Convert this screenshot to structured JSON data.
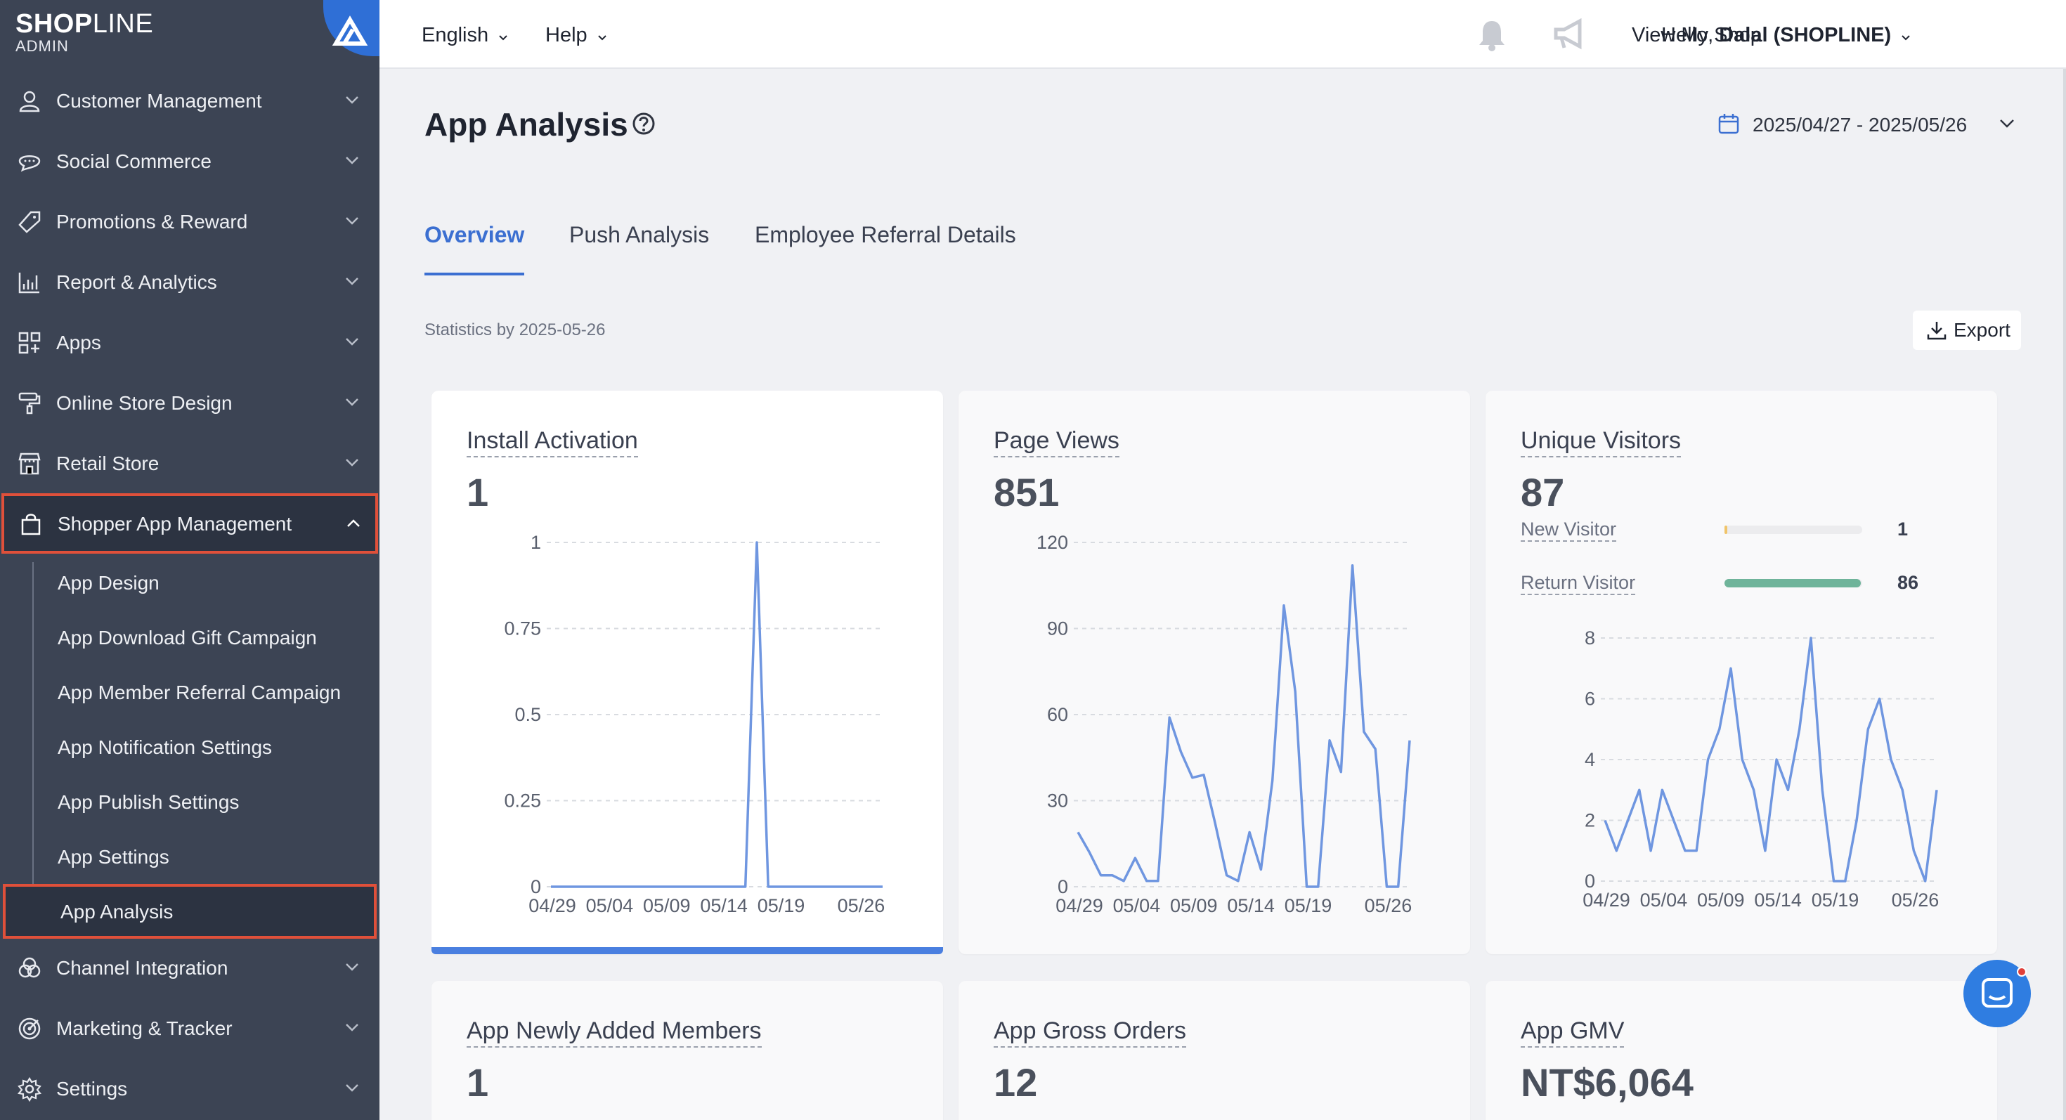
{
  "sidebar": {
    "logo": {
      "brand_bold": "SHOP",
      "brand_light": "LINE",
      "subtitle": "ADMIN"
    },
    "items": [
      {
        "label": "Customer Management",
        "icon": "user-icon"
      },
      {
        "label": "Social Commerce",
        "icon": "chat-bubble-icon"
      },
      {
        "label": "Promotions & Reward",
        "icon": "tag-icon"
      },
      {
        "label": "Report & Analytics",
        "icon": "bar-chart-icon"
      },
      {
        "label": "Apps",
        "icon": "apps-grid-icon"
      },
      {
        "label": "Online Store Design",
        "icon": "paint-roller-icon"
      },
      {
        "label": "Retail Store",
        "icon": "store-icon"
      },
      {
        "label": "Shopper App Management",
        "icon": "shopping-bag-icon",
        "expanded": true
      },
      {
        "label": "Channel Integration",
        "icon": "channels-icon"
      },
      {
        "label": "Marketing & Tracker",
        "icon": "target-icon"
      },
      {
        "label": "Settings",
        "icon": "gear-icon"
      }
    ],
    "sub_items": [
      {
        "label": "App Design"
      },
      {
        "label": "App Download Gift Campaign"
      },
      {
        "label": "App Member Referral Campaign"
      },
      {
        "label": "App Notification Settings"
      },
      {
        "label": "App Publish Settings"
      },
      {
        "label": "App Settings"
      },
      {
        "label": "App Analysis",
        "selected": true
      }
    ]
  },
  "topbar": {
    "language": "English",
    "help": "Help",
    "view_shop": "View My Shop",
    "greeting": "Hello,",
    "user": "Dalal (SHOPLINE)"
  },
  "main": {
    "title": "App Analysis",
    "date_range": "2025/04/27 - 2025/05/26",
    "tabs": [
      {
        "label": "Overview",
        "active": true
      },
      {
        "label": "Push Analysis"
      },
      {
        "label": "Employee Referral Details"
      }
    ],
    "stats_by": "Statistics by 2025-05-26",
    "export_label": "Export",
    "cards": [
      {
        "title": "Install Activation",
        "value": "1"
      },
      {
        "title": "Page Views",
        "value": "851"
      },
      {
        "title": "Unique Visitors",
        "value": "87"
      },
      {
        "title": "App Newly Added Members",
        "value": "1"
      },
      {
        "title": "App Gross Orders",
        "value": "12"
      },
      {
        "title": "App GMV",
        "value": "NT$6,064"
      }
    ],
    "visitors": {
      "new_label": "New Visitor",
      "new_value": "1",
      "return_label": "Return Visitor",
      "return_value": "86"
    }
  },
  "colors": {
    "accent": "#3b6fd1",
    "line": "#6f96e0",
    "return_bar": "#6fb49a",
    "new_bar": "#f0c46a",
    "highlight": "#e0503a"
  },
  "chart_data": [
    {
      "type": "line",
      "name": "Install Activation",
      "x_ticks": [
        "04/29",
        "05/04",
        "05/09",
        "05/14",
        "05/19",
        "05/26"
      ],
      "y_ticks": [
        "0",
        "0.25",
        "0.5",
        "0.75",
        "1"
      ],
      "ylim": [
        0,
        1
      ],
      "values": [
        0,
        0,
        0,
        0,
        0,
        0,
        0,
        0,
        0,
        0,
        0,
        0,
        0,
        0,
        0,
        0,
        0,
        0,
        1,
        0,
        0,
        0,
        0,
        0,
        0,
        0,
        0,
        0,
        0,
        0
      ]
    },
    {
      "type": "line",
      "name": "Page Views",
      "x_ticks": [
        "04/29",
        "05/04",
        "05/09",
        "05/14",
        "05/19",
        "05/26"
      ],
      "y_ticks": [
        "0",
        "30",
        "60",
        "90",
        "120"
      ],
      "ylim": [
        0,
        120
      ],
      "values": [
        19,
        12,
        4,
        4,
        2,
        10,
        2,
        2,
        59,
        47,
        38,
        39,
        22,
        4,
        2,
        19,
        6,
        37,
        98,
        68,
        0,
        0,
        51,
        40,
        112,
        54,
        48,
        0,
        0,
        51
      ]
    },
    {
      "type": "line",
      "name": "Unique Visitors",
      "x_ticks": [
        "04/29",
        "05/04",
        "05/09",
        "05/14",
        "05/19",
        "05/26"
      ],
      "y_ticks": [
        "0",
        "2",
        "4",
        "6",
        "8"
      ],
      "ylim": [
        0,
        8
      ],
      "values": [
        2,
        1,
        2,
        3,
        1,
        3,
        2,
        1,
        1,
        4,
        5,
        7,
        4,
        3,
        1,
        4,
        3,
        5,
        8,
        3,
        0,
        0,
        2,
        5,
        6,
        4,
        3,
        1,
        0,
        3
      ]
    }
  ]
}
